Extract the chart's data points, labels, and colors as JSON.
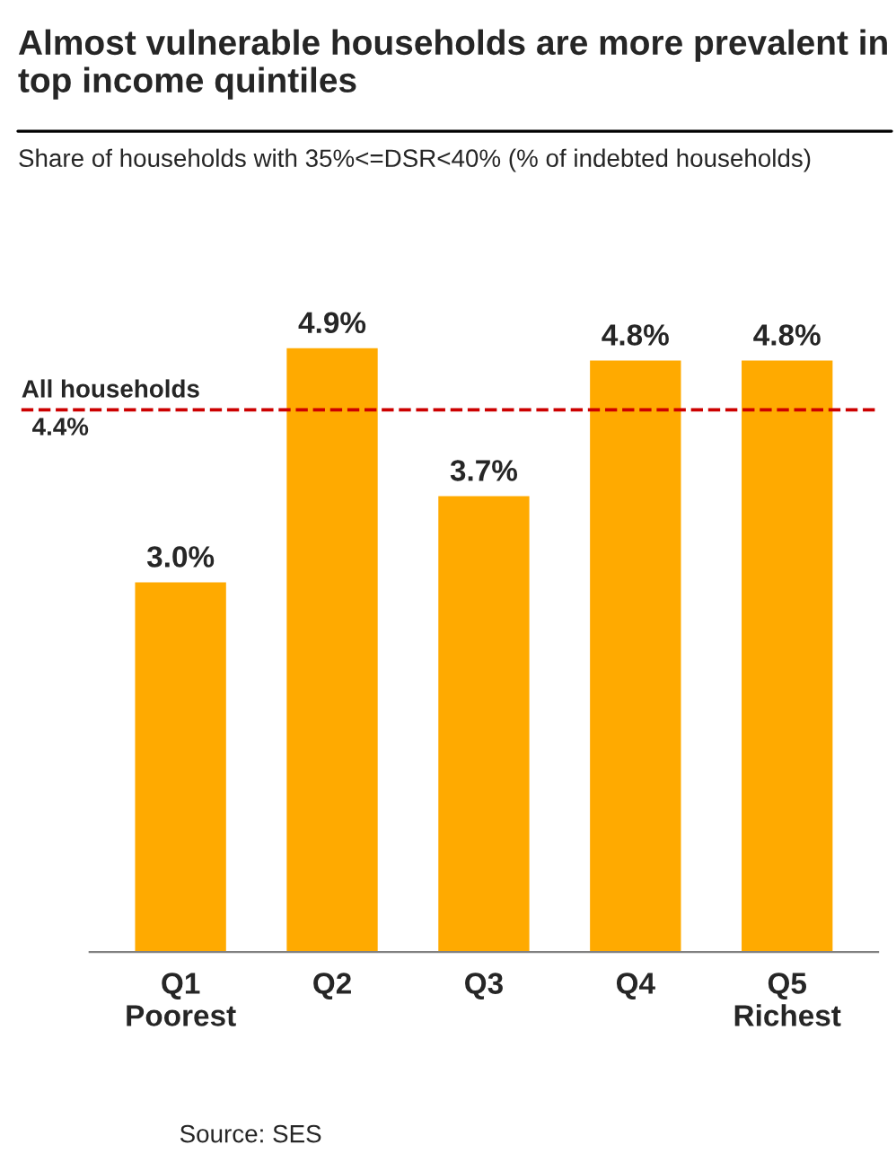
{
  "chart_data": {
    "type": "bar",
    "title": "Almost vulnerable households are more prevalent in top income quintiles",
    "subtitle": "Share of households with 35%<=DSR<40% (% of indebted households)",
    "categories": [
      "Q1\nPoorest",
      "Q2",
      "Q3",
      "Q4",
      "Q5\nRichest"
    ],
    "values": [
      3.0,
      4.9,
      3.7,
      4.8,
      4.8
    ],
    "value_labels": [
      "3.0%",
      "4.9%",
      "3.7%",
      "4.8%",
      "4.8%"
    ],
    "color": "#ffaa00",
    "ref_lines": [
      {
        "axis": "y",
        "value": 4.4,
        "label": "All households\n4.4%",
        "color": "#cc0000",
        "line_style": "dashed"
      }
    ],
    "annotations": [
      "Source: SES"
    ],
    "grid": false,
    "legend": false
  }
}
